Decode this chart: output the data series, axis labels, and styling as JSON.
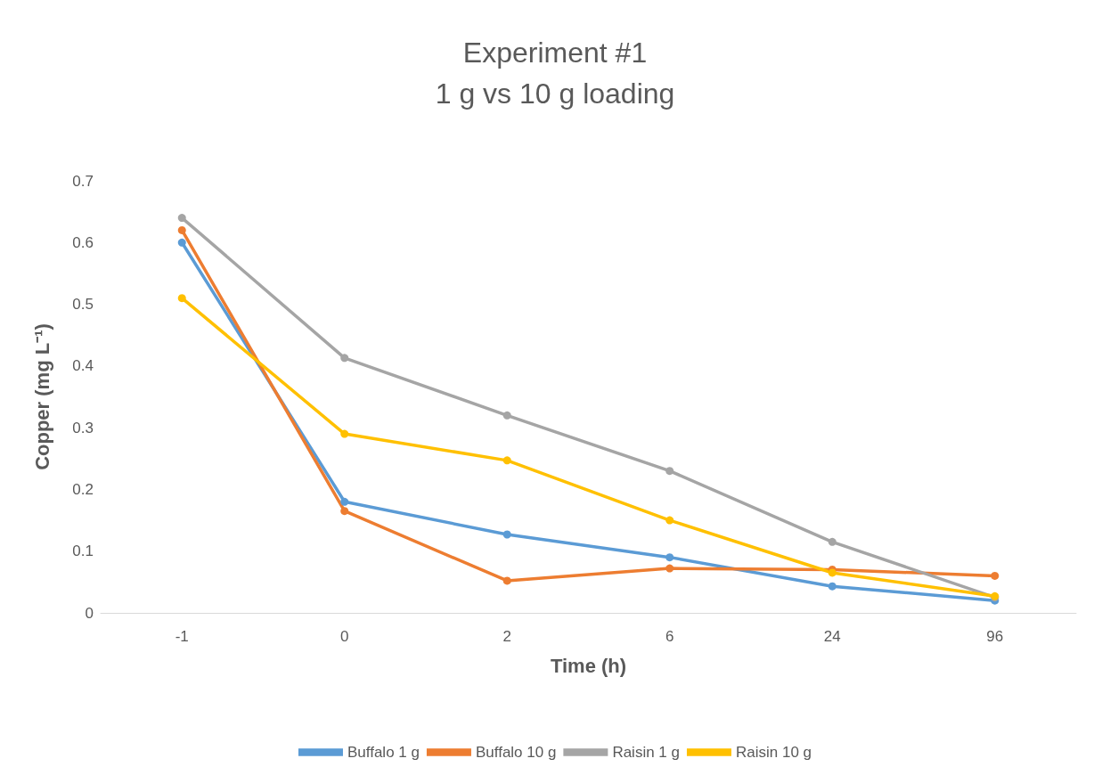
{
  "chart_data": {
    "type": "line",
    "title": "Experiment #1",
    "subtitle": "1 g vs 10 g loading",
    "xlabel": "Time (h)",
    "ylabel": "Copper (mg L⁻¹)",
    "categories": [
      "-1",
      "0",
      "2",
      "6",
      "24",
      "96"
    ],
    "series": [
      {
        "name": "Buffalo 1 g",
        "color": "#5b9bd5",
        "values": [
          0.6,
          0.18,
          0.127,
          0.09,
          0.043,
          0.02
        ]
      },
      {
        "name": "Buffalo 10 g",
        "color": "#ed7d31",
        "values": [
          0.62,
          0.165,
          0.052,
          0.072,
          0.07,
          0.06
        ]
      },
      {
        "name": "Raisin 1 g",
        "color": "#a5a5a5",
        "values": [
          0.64,
          0.413,
          0.32,
          0.23,
          0.115,
          0.025
        ]
      },
      {
        "name": "Raisin 10 g",
        "color": "#ffc000",
        "values": [
          0.51,
          0.29,
          0.247,
          0.15,
          0.065,
          0.027
        ]
      }
    ],
    "ylim": [
      0,
      0.7
    ],
    "yticks": [
      0,
      0.1,
      0.2,
      0.3,
      0.4,
      0.5,
      0.6,
      0.7
    ],
    "grid": false,
    "legend": "bottom",
    "marker": "circle",
    "line_style": "solid"
  }
}
